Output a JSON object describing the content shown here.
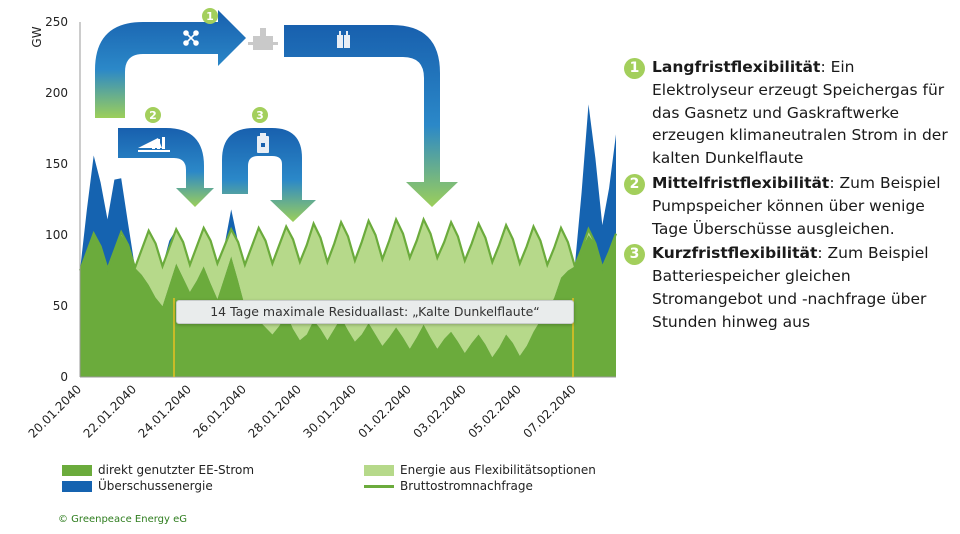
{
  "chart_data": {
    "type": "area",
    "ylabel": "GW",
    "ylim": [
      0,
      250
    ],
    "yticks": [
      "0",
      "50",
      "100",
      "150",
      "200",
      "250"
    ],
    "xticks": [
      "20.01.2040",
      "22.01.2040",
      "24.01.2040",
      "26.01.2040",
      "28.01.2040",
      "30.01.2040",
      "01.02.2040",
      "03.02.2040",
      "05.02.2040",
      "07.02.2040"
    ],
    "xlim_days": [
      0,
      19.5
    ],
    "series": [
      {
        "name": "Bruttostromnachfrage",
        "color": "#6bab3c",
        "type": "line",
        "x": [
          0,
          0.25,
          0.5,
          0.75,
          1,
          1.25,
          1.5,
          1.75,
          2,
          2.25,
          2.5,
          2.75,
          3,
          3.25,
          3.5,
          3.75,
          4,
          4.25,
          4.5,
          4.75,
          5,
          5.25,
          5.5,
          5.75,
          6,
          6.25,
          6.5,
          6.75,
          7,
          7.25,
          7.5,
          7.75,
          8,
          8.25,
          8.5,
          8.75,
          9,
          9.25,
          9.5,
          9.75,
          10,
          10.25,
          10.5,
          10.75,
          11,
          11.25,
          11.5,
          11.75,
          12,
          12.25,
          12.5,
          12.75,
          13,
          13.25,
          13.5,
          13.75,
          14,
          14.25,
          14.5,
          14.75,
          15,
          15.25,
          15.5,
          15.75,
          16,
          16.25,
          16.5,
          16.75,
          17,
          17.25,
          17.5,
          17.75,
          18,
          18.25,
          18.5,
          18.75,
          19,
          19.25,
          19.5
        ],
        "values": [
          75,
          88,
          101,
          92,
          76,
          89,
          102,
          93,
          77,
          90,
          103,
          94,
          78,
          91,
          104,
          95,
          79,
          92,
          105,
          96,
          80,
          92,
          104,
          95,
          79,
          92,
          105,
          96,
          80,
          93,
          106,
          97,
          81,
          93,
          108,
          98,
          81,
          94,
          109,
          99,
          82,
          95,
          110,
          100,
          83,
          96,
          111,
          101,
          84,
          96,
          111,
          101,
          84,
          95,
          109,
          99,
          82,
          94,
          108,
          98,
          81,
          93,
          107,
          97,
          80,
          92,
          106,
          96,
          79,
          91,
          105,
          95,
          78,
          90,
          104,
          94,
          77,
          88,
          101
        ]
      },
      {
        "name": "direkt genutzter EE-Strom",
        "color": "#6bab3c",
        "values": [
          75,
          88,
          101,
          92,
          76,
          89,
          100,
          93,
          77,
          72,
          65,
          56,
          50,
          65,
          80,
          70,
          60,
          68,
          78,
          66,
          55,
          70,
          85,
          68,
          50,
          45,
          40,
          35,
          30,
          36,
          45,
          34,
          26,
          30,
          40,
          34,
          26,
          34,
          42,
          33,
          25,
          30,
          38,
          30,
          22,
          28,
          35,
          28,
          20,
          28,
          37,
          28,
          20,
          27,
          32,
          25,
          17,
          24,
          30,
          23,
          14,
          21,
          30,
          24,
          15,
          22,
          32,
          40,
          46,
          56,
          70,
          75,
          78,
          90,
          100,
          94,
          77,
          88,
          101
        ]
      },
      {
        "name": "Überschussenergie",
        "color": "#1563b0",
        "values": [
          0,
          30,
          55,
          45,
          35,
          50,
          38,
          15,
          0,
          0,
          0,
          0,
          0,
          5,
          0,
          0,
          0,
          0,
          0,
          0,
          0,
          0,
          14,
          0,
          0,
          0,
          0,
          0,
          0,
          0,
          0,
          0,
          0,
          0,
          0,
          0,
          0,
          0,
          0,
          0,
          0,
          0,
          0,
          0,
          0,
          0,
          0,
          0,
          0,
          0,
          0,
          0,
          0,
          0,
          0,
          0,
          0,
          0,
          0,
          0,
          0,
          0,
          0,
          0,
          0,
          0,
          0,
          0,
          0,
          0,
          0,
          0,
          0,
          40,
          88,
          60,
          30,
          45,
          70
        ]
      },
      {
        "name": "Energie aus Flexibilitätsoptionen",
        "color": "#b6d98a",
        "values": []
      }
    ],
    "annotation": "14 Tage maximale Residuallast: „Kalte Dunkelflaute“"
  },
  "legend": {
    "ee": "direkt genutzter EE-Strom",
    "surplus": "Überschussenergie",
    "flex": "Energie aus Flexibilitätsoptionen",
    "demand": "Bruttostromnachfrage"
  },
  "credit": "© Greenpeace Energy eG",
  "arrow_numbers": [
    "❶",
    "❷",
    "❸"
  ],
  "items": [
    {
      "num": "1",
      "title": "Langfristflexibilität",
      "text": ": Ein Elektrolyseur erzeugt Speichergas für das Gasnetz und Gaskraftwerke erzeugen klimaneutralen Strom in der kalten Dunkelflaute"
    },
    {
      "num": "2",
      "title": "Mittelfristflexibilität",
      "text": ": Zum Beispiel Pumpspeicher können über wenige Tage Überschüsse ausgleichen."
    },
    {
      "num": "3",
      "title": "Kurzfristflexibilität",
      "text": ": Zum Beispiel Batteriespeicher gleichen Stromangebot und -nachfrage über Stunden hinweg aus"
    }
  ],
  "colors": {
    "green": "#6bab3c",
    "lightgreen": "#b6d98a",
    "blue": "#1563b0",
    "numbadge": "#a3cf5c"
  }
}
